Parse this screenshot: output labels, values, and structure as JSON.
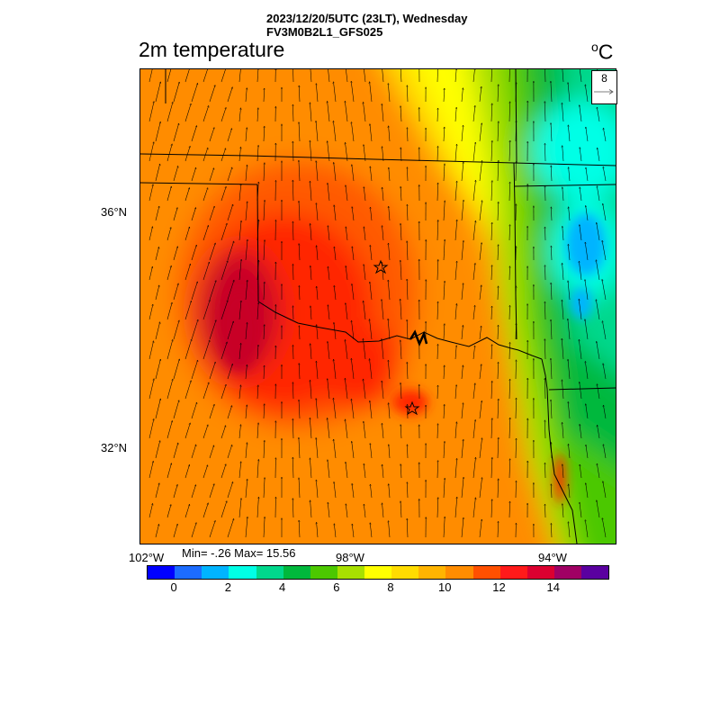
{
  "header": {
    "line1": "2023/12/20/5UTC (23LT), Wednesday",
    "line2": "FV3M0B2L1_GFS025"
  },
  "title": "2m temperature",
  "units": {
    "degree": "o",
    "letter": "C"
  },
  "lat_labels": [
    "36°N",
    "32°N"
  ],
  "lon_labels": [
    "102°W",
    "98°W",
    "94°W"
  ],
  "minmax": "Min= -.26 Max= 15.56",
  "reference_vector": {
    "label": "8"
  },
  "colorbar": {
    "colors": [
      "#0000ff",
      "#1c6cff",
      "#00b4ff",
      "#00ffe6",
      "#00d88c",
      "#00b83c",
      "#4cc800",
      "#a8e000",
      "#ffff00",
      "#ffdc00",
      "#ffb400",
      "#ff8c00",
      "#ff5000",
      "#ff1a1a",
      "#dc0030",
      "#a00064",
      "#5a00a0"
    ],
    "labels": [
      "0",
      "2",
      "4",
      "6",
      "8",
      "10",
      "12",
      "14"
    ]
  },
  "legend_colors": {
    "deep_red": "#c80028",
    "red": "#ff2800",
    "orange_red": "#ff5a00",
    "orange": "#ff8c00",
    "yellow_orange": "#ffb400",
    "gold": "#ffdc00",
    "yellow": "#ffff00",
    "yellow_green": "#a8e000",
    "green": "#4cc800",
    "dark_green": "#00b83c",
    "sea_green": "#00d88c",
    "cyan": "#00ffe6",
    "light_blue": "#00b4ff",
    "blue": "#1c6cff"
  },
  "stars": [
    {
      "name": "oklahoma-city-star"
    },
    {
      "name": "dallas-star"
    }
  ]
}
